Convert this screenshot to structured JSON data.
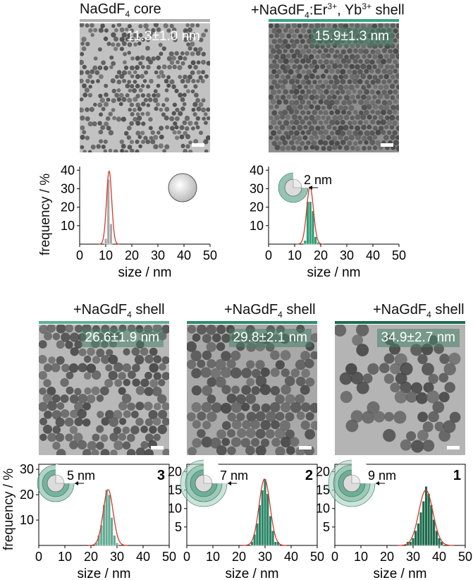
{
  "panels": [
    {
      "title_pre": "NaGdF",
      "title_sub": "4",
      "title_mid": " core",
      "title_sup1": "",
      "title_mid2": "",
      "title_sup2": "",
      "title_post": "",
      "badge": "11.3±1.0 nm",
      "line_color": "#b0b0b0"
    },
    {
      "title_pre": "+NaGdF",
      "title_sub": "4",
      "title_mid": ":Er",
      "title_sup1": "3+",
      "title_mid2": ", Yb",
      "title_sup2": "3+",
      "title_post": " shell",
      "badge": "15.9±1.3 nm",
      "line_color": "#3aa386"
    },
    {
      "title_pre": "+NaGdF",
      "title_sub": "4",
      "title_mid": " shell",
      "title_sup1": "",
      "title_mid2": "",
      "title_sup2": "",
      "title_post": "",
      "badge": "26.6±1.9 nm",
      "line_color": "#5fae95"
    },
    {
      "title_pre": "+NaGdF",
      "title_sub": "4",
      "title_mid": " shell",
      "title_sup1": "",
      "title_mid2": "",
      "title_sup2": "",
      "title_post": "",
      "badge": "29.8±2.1 nm",
      "line_color": "#2f8a6c"
    },
    {
      "title_pre": "+NaGdF",
      "title_sub": "4",
      "title_mid": " shell",
      "title_sup1": "",
      "title_mid2": "",
      "title_sup2": "",
      "title_post": "",
      "badge": "34.9±2.7 nm",
      "line_color": "#1f6b50"
    }
  ],
  "chart_data": [
    {
      "type": "bar",
      "xlabel": "size / nm",
      "ylabel": "frequency / %",
      "xlim": [
        0,
        50
      ],
      "ylim": [
        0,
        42
      ],
      "xticks": [
        0,
        10,
        20,
        30,
        40,
        50
      ],
      "yticks": [
        10,
        20,
        30,
        40
      ],
      "bar_color": "#a9a9a9",
      "bins": [
        10,
        11,
        12
      ],
      "values": [
        3,
        35,
        11
      ],
      "fit_mean": 11.3,
      "fit_sd": 1.0,
      "fit_peak": 39.5,
      "annotation": "",
      "panel_number": "",
      "framed": false
    },
    {
      "type": "bar",
      "xlabel": "size / nm",
      "ylabel": "",
      "xlim": [
        0,
        50
      ],
      "ylim": [
        0,
        42
      ],
      "xticks": [
        0,
        10,
        20,
        30,
        40,
        50
      ],
      "yticks": [
        10,
        20,
        30,
        40
      ],
      "bar_color": "#2e9c76",
      "bins": [
        14,
        15,
        16,
        17,
        18,
        19
      ],
      "values": [
        2,
        23,
        23,
        18,
        4,
        1
      ],
      "fit_mean": 15.9,
      "fit_sd": 1.3,
      "fit_peak": 31,
      "annotation": "2 nm",
      "panel_number": "",
      "framed": false
    },
    {
      "type": "bar",
      "xlabel": "size / nm",
      "ylabel": "frequency / %",
      "xlim": [
        0,
        50
      ],
      "ylim": [
        0,
        32
      ],
      "xticks": [
        0,
        10,
        20,
        30,
        40,
        50
      ],
      "yticks": [
        10,
        20,
        30
      ],
      "bar_color": "#64ab93",
      "bins": [
        22,
        23,
        24,
        25,
        26,
        27,
        28,
        29,
        30
      ],
      "values": [
        1,
        4,
        8,
        16,
        22,
        20,
        11,
        4,
        1
      ],
      "fit_mean": 26.6,
      "fit_sd": 1.9,
      "fit_peak": 22,
      "annotation": "5 nm",
      "panel_number": "3",
      "framed": true
    },
    {
      "type": "bar",
      "xlabel": "size / nm",
      "ylabel": "",
      "xlim": [
        0,
        50
      ],
      "ylim": [
        0,
        22
      ],
      "xticks": [
        0,
        10,
        20,
        30,
        40,
        50
      ],
      "yticks": [
        5,
        10,
        15,
        20
      ],
      "bar_color": "#2a8466",
      "bins": [
        25,
        26,
        27,
        28,
        29,
        30,
        31,
        32,
        33,
        34,
        35
      ],
      "values": [
        1,
        3,
        6,
        11,
        15,
        18,
        14,
        8,
        4,
        1,
        1
      ],
      "fit_mean": 29.8,
      "fit_sd": 2.1,
      "fit_peak": 18,
      "annotation": "7 nm",
      "panel_number": "2",
      "framed": true
    },
    {
      "type": "bar",
      "xlabel": "size / nm",
      "ylabel": "",
      "xlim": [
        0,
        50
      ],
      "ylim": [
        0,
        22
      ],
      "xticks": [
        0,
        10,
        20,
        30,
        40,
        50
      ],
      "yticks": [
        5,
        10,
        15,
        20
      ],
      "bar_color": "#1b6a4c",
      "bins": [
        28,
        29,
        30,
        31,
        32,
        33,
        34,
        35,
        36,
        37,
        38,
        39,
        40,
        41
      ],
      "values": [
        1,
        1,
        2,
        4,
        6,
        9,
        12,
        16,
        14,
        11,
        7,
        4,
        2,
        1
      ],
      "fit_mean": 34.9,
      "fit_sd": 2.7,
      "fit_peak": 15,
      "annotation": "9 nm",
      "panel_number": "1",
      "framed": true
    }
  ]
}
